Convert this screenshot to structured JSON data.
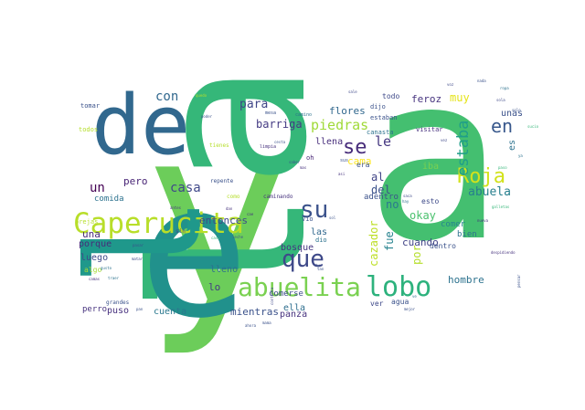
{
  "wordcloud": {
    "words": [
      {
        "text": "y",
        "color": "#6ccd5a"
      },
      {
        "text": "a",
        "color": "#44bf70"
      },
      {
        "text": "la",
        "color": "#35b779"
      },
      {
        "text": "e",
        "color": "#21918c"
      },
      {
        "text": "l",
        "color": "#1f988b"
      },
      {
        "text": "de",
        "color": "#31688e"
      },
      {
        "text": "Caperucita",
        "color": "#b8de29"
      },
      {
        "text": "abuelita",
        "color": "#7ad151"
      },
      {
        "text": "lobo",
        "color": "#2db27d"
      },
      {
        "text": "su",
        "color": "#3b528b"
      },
      {
        "text": "que",
        "color": "#3e4989"
      },
      {
        "text": "se",
        "color": "#472c7a"
      },
      {
        "text": "le",
        "color": "#453781"
      },
      {
        "text": "Roja",
        "color": "#d2e21b"
      },
      {
        "text": "en",
        "color": "#38588c"
      },
      {
        "text": "estaba",
        "color": "#1f9e89"
      },
      {
        "text": "abuela",
        "color": "#277f8e"
      },
      {
        "text": "con",
        "color": "#31688e"
      },
      {
        "text": "para",
        "color": "#404688"
      },
      {
        "text": "barriga",
        "color": "#443a83"
      },
      {
        "text": "piedras",
        "color": "#a0da39"
      },
      {
        "text": "feroz",
        "color": "#46337f"
      },
      {
        "text": "muy",
        "color": "#e5e419"
      },
      {
        "text": "flores",
        "color": "#31688e"
      },
      {
        "text": "llena",
        "color": "#472d7b"
      },
      {
        "text": "cama",
        "color": "#fde725"
      },
      {
        "text": "casa",
        "color": "#3f4889"
      },
      {
        "text": "pero",
        "color": "#482475"
      },
      {
        "text": "un",
        "color": "#440154"
      },
      {
        "text": "comida",
        "color": "#2c728e"
      },
      {
        "text": "entonces",
        "color": "#3e4a89"
      },
      {
        "text": "al",
        "color": "#414487"
      },
      {
        "text": "del",
        "color": "#3b528b"
      },
      {
        "text": "no",
        "color": "#2a788e"
      },
      {
        "text": "fue",
        "color": "#26828e"
      },
      {
        "text": "cazador",
        "color": "#bddf26"
      },
      {
        "text": "iba",
        "color": "#7ad151"
      },
      {
        "text": "okay",
        "color": "#4ac16d"
      },
      {
        "text": "unas",
        "color": "#3b528b"
      },
      {
        "text": "es",
        "color": "#2c728e"
      },
      {
        "text": "cuando",
        "color": "#414487"
      },
      {
        "text": "comer",
        "color": "#25858e"
      },
      {
        "text": "hombre",
        "color": "#2c728e"
      },
      {
        "text": "una",
        "color": "#482878"
      },
      {
        "text": "porque",
        "color": "#472c7a"
      },
      {
        "text": "luego",
        "color": "#3e4989"
      },
      {
        "text": "algo",
        "color": "#a5db36"
      },
      {
        "text": "lleno",
        "color": "#2d708e"
      },
      {
        "text": "lo",
        "color": "#443b84"
      },
      {
        "text": "bosque",
        "color": "#453581"
      },
      {
        "text": "las",
        "color": "#31688e"
      },
      {
        "text": "mientras",
        "color": "#3b528b"
      },
      {
        "text": "panza",
        "color": "#46327e"
      },
      {
        "text": "ella",
        "color": "#2e6e8e"
      },
      {
        "text": "puso",
        "color": "#46307e"
      },
      {
        "text": "cuenta",
        "color": "#2a788e"
      },
      {
        "text": "perro",
        "color": "#46327e"
      },
      {
        "text": "comerse",
        "color": "#3d4d8a"
      },
      {
        "text": "por",
        "color": "#b5de2b"
      },
      {
        "text": "adentro",
        "color": "#3b528b"
      },
      {
        "text": "esto",
        "color": "#3e4a89"
      },
      {
        "text": "bien",
        "color": "#2c728e"
      },
      {
        "text": "dentro",
        "color": "#3b528b"
      },
      {
        "text": "agua",
        "color": "#3b528b"
      },
      {
        "text": "ver",
        "color": "#3e4989"
      },
      {
        "text": "vio",
        "color": "#3b528b"
      },
      {
        "text": "dio",
        "color": "#2c728e"
      },
      {
        "text": "oh",
        "color": "#482475"
      },
      {
        "text": "era",
        "color": "#3b528b"
      },
      {
        "text": "todo",
        "color": "#3e4989"
      },
      {
        "text": "dijo",
        "color": "#3b528b"
      },
      {
        "text": "visitar",
        "color": "#46307e"
      },
      {
        "text": "estaban",
        "color": "#3b528b"
      },
      {
        "text": "canasta",
        "color": "#2c728e"
      },
      {
        "text": "tomar",
        "color": "#3b528b"
      },
      {
        "text": "todos",
        "color": "#b5de2b"
      },
      {
        "text": "repente",
        "color": "#3b528b"
      },
      {
        "text": "caminando",
        "color": "#46327e"
      },
      {
        "text": "como",
        "color": "#b5de2b"
      },
      {
        "text": "tienes",
        "color": "#b5de2b"
      },
      {
        "text": "orejas",
        "color": "#b5de2b"
      },
      {
        "text": "grandes",
        "color": "#3b528b"
      },
      {
        "text": "sin",
        "color": "#3e4a89"
      },
      {
        "text": "mesa",
        "color": "#3b528b"
      },
      {
        "text": "limpia",
        "color": "#46327e"
      },
      {
        "text": "camino",
        "color": "#2c728e"
      },
      {
        "text": "ahora",
        "color": "#3b528b"
      },
      {
        "text": "contenta",
        "color": "#3e4989"
      },
      {
        "text": "galletas",
        "color": "#35b779"
      },
      {
        "text": "pensar",
        "color": "#3b528b"
      },
      {
        "text": "despidiendo",
        "color": "#46327e"
      },
      {
        "text": "mejor",
        "color": "#3b528b"
      },
      {
        "text": "matar",
        "color": "#3e4989"
      },
      {
        "text": "traer",
        "color": "#2c728e"
      },
      {
        "text": "camas",
        "color": "#46327e"
      },
      {
        "text": "solo",
        "color": "#3b528b"
      },
      {
        "text": "sola",
        "color": "#3e4989"
      },
      {
        "text": "sus",
        "color": "#3b528b"
      },
      {
        "text": "hay",
        "color": "#2c728e"
      },
      {
        "text": "mas",
        "color": "#46327e"
      },
      {
        "text": "quedo",
        "color": "#b5de2b"
      },
      {
        "text": "poder",
        "color": "#3b528b"
      },
      {
        "text": "ropa",
        "color": "#2c728e"
      },
      {
        "text": "nada",
        "color": "#3b528b"
      },
      {
        "text": "voz",
        "color": "#3e4989"
      },
      {
        "text": "tan",
        "color": "#3b528b"
      },
      {
        "text": "antes",
        "color": "#46327e"
      },
      {
        "text": "pasar",
        "color": "#3b528b"
      },
      {
        "text": "casi",
        "color": "#35b779"
      },
      {
        "text": "saca",
        "color": "#3e4989"
      },
      {
        "text": "cesta",
        "color": "#3b528b"
      },
      {
        "text": "gusto",
        "color": "#2c728e"
      },
      {
        "text": "nueva",
        "color": "#46327e"
      },
      {
        "text": "leche",
        "color": "#3b528b"
      },
      {
        "text": "sale",
        "color": "#3e4989"
      },
      {
        "text": "sucio",
        "color": "#35b779"
      },
      {
        "text": "saber",
        "color": "#3b528b"
      },
      {
        "text": "cae",
        "color": "#46327e"
      },
      {
        "text": "tu",
        "color": "#3b528b"
      },
      {
        "text": "ya",
        "color": "#2c728e"
      },
      {
        "text": "vez",
        "color": "#3e4989"
      },
      {
        "text": "asi",
        "color": "#46327e"
      },
      {
        "text": "sol",
        "color": "#3b528b"
      },
      {
        "text": "paso",
        "color": "#35b779"
      },
      {
        "text": "ve",
        "color": "#2c728e"
      },
      {
        "text": "mama",
        "color": "#3b528b"
      },
      {
        "text": "pan",
        "color": "#3b528b"
      },
      {
        "text": "dan",
        "color": "#46327e"
      }
    ]
  }
}
